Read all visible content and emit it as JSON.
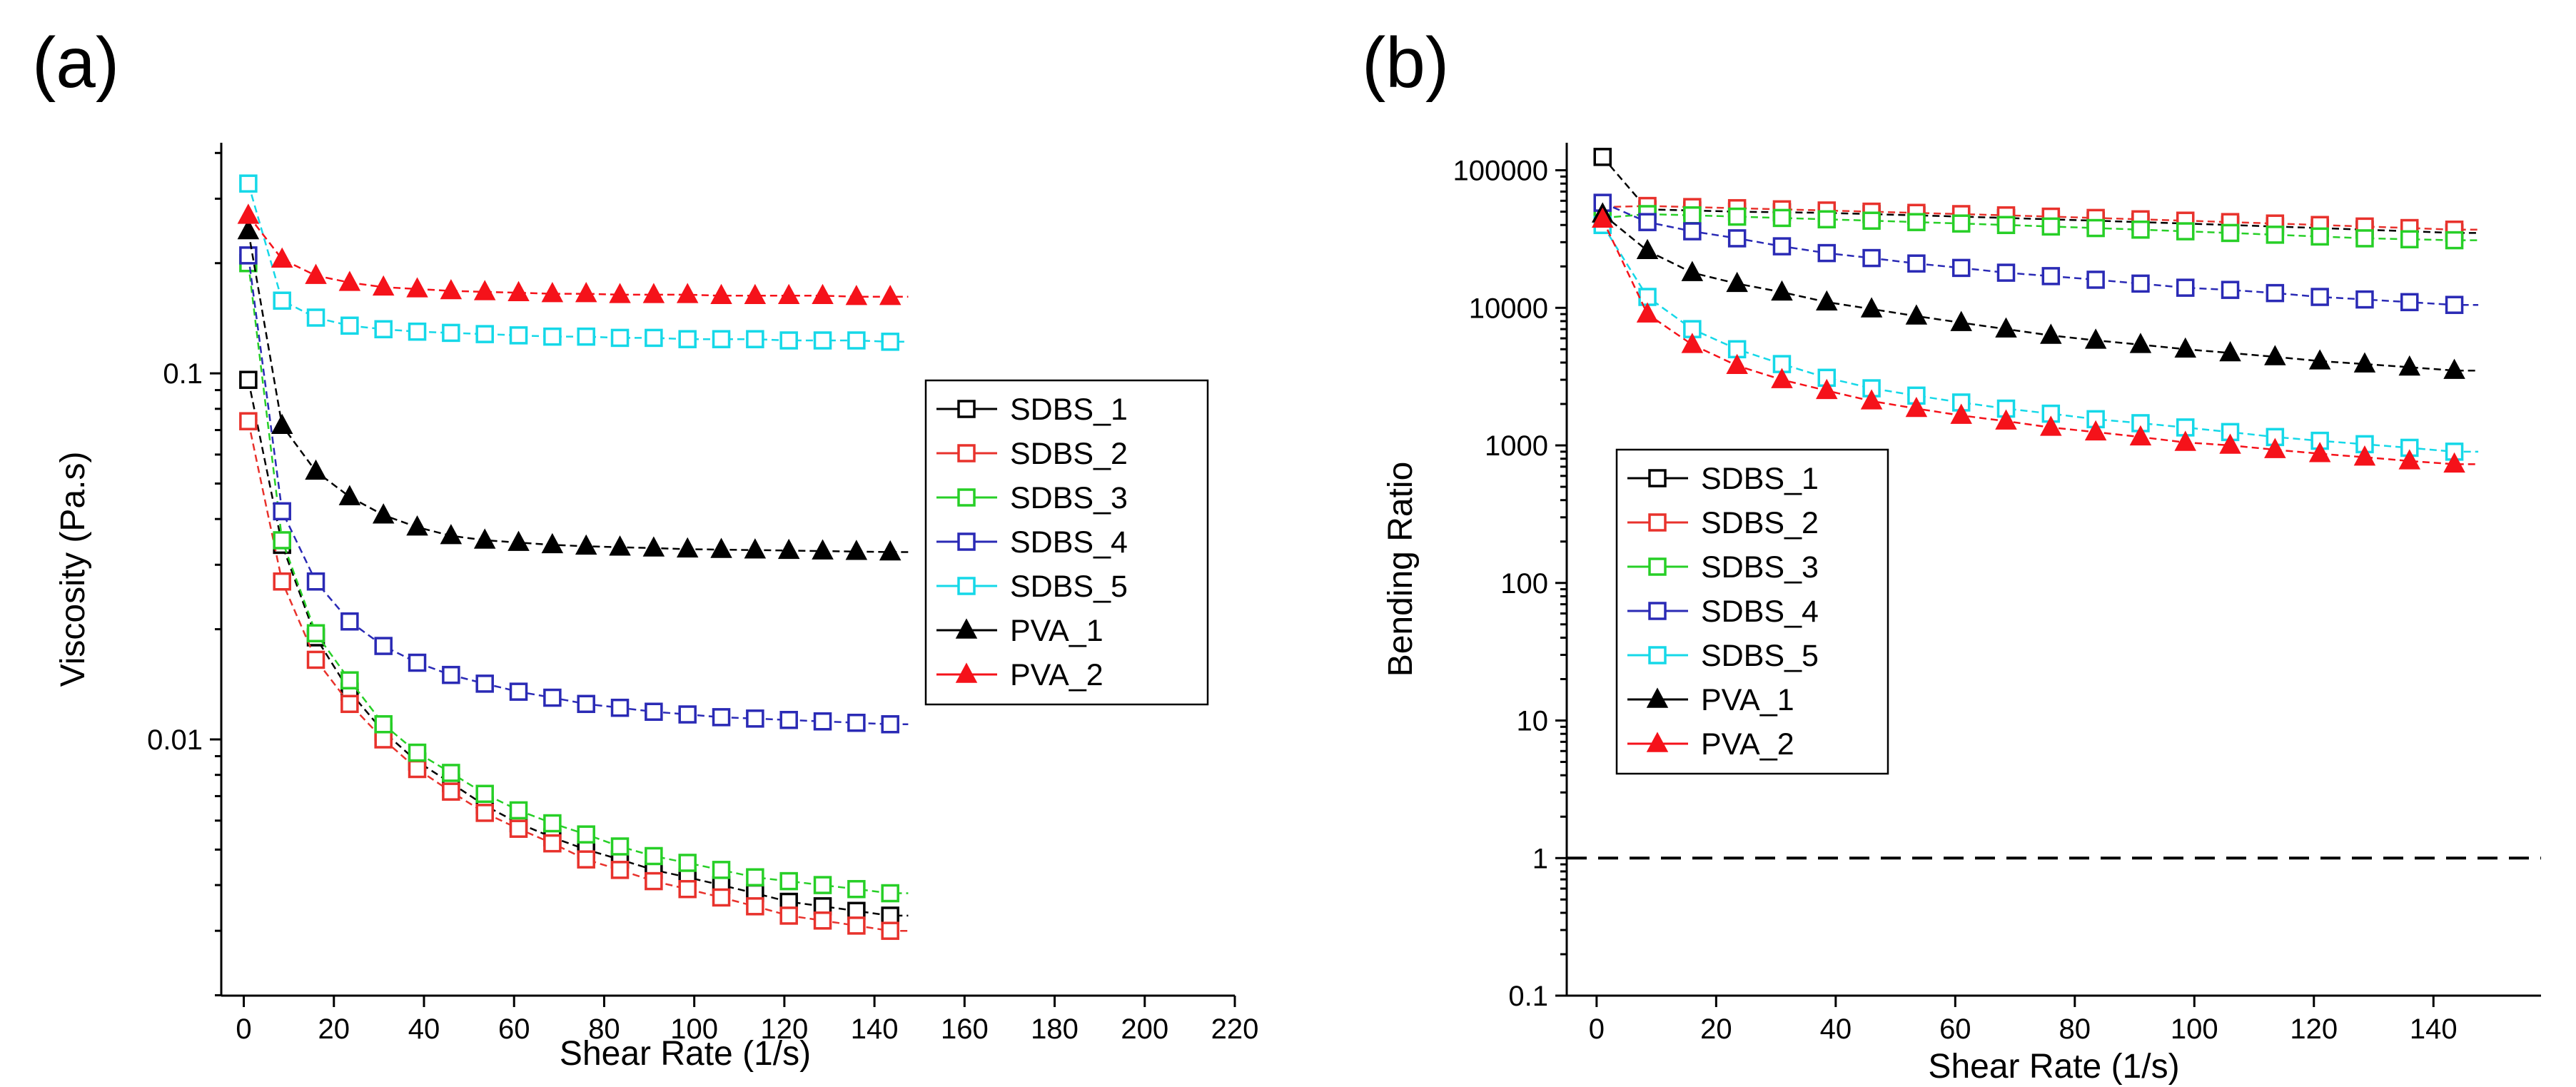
{
  "panels": [
    {
      "letter": "(a)",
      "chart_data": {
        "type": "scatter",
        "title": "",
        "xlabel": "Shear Rate (1/s)",
        "ylabel": "Viscosity (Pa.s)",
        "xlim": [
          -5,
          220
        ],
        "ylim_log10": [
          -2.7,
          -0.37
        ],
        "yscale": "log",
        "xticks": [
          0,
          20,
          40,
          60,
          80,
          100,
          120,
          140,
          160,
          180,
          200,
          220
        ],
        "yticks": [
          {
            "value": 0.1,
            "label": "0.1"
          },
          {
            "value": 0.01,
            "label": "0.01"
          }
        ],
        "x": [
          1,
          8.5,
          16,
          23.5,
          31,
          38.5,
          46,
          53.5,
          61,
          68.5,
          76,
          83.5,
          91,
          98.5,
          106,
          113.5,
          121,
          128.5,
          136,
          143.5
        ],
        "series": [
          {
            "name": "SDBS_1",
            "color": "#000000",
            "marker": "square",
            "values": [
              0.096,
              0.034,
              0.019,
              0.0135,
              0.0105,
              0.0087,
              0.0076,
              0.0066,
              0.0059,
              0.0054,
              0.005,
              0.0047,
              0.0044,
              0.0042,
              0.004,
              0.0038,
              0.0036,
              0.0035,
              0.0034,
              0.0033
            ]
          },
          {
            "name": "SDBS_2",
            "color": "#e8322c",
            "marker": "square",
            "values": [
              0.074,
              0.027,
              0.0165,
              0.0125,
              0.01,
              0.0083,
              0.0072,
              0.0063,
              0.0057,
              0.0052,
              0.0047,
              0.0044,
              0.0041,
              0.0039,
              0.0037,
              0.0035,
              0.0033,
              0.0032,
              0.0031,
              0.003
            ]
          },
          {
            "name": "SDBS_3",
            "color": "#27cf27",
            "marker": "square",
            "values": [
              0.2,
              0.035,
              0.0195,
              0.0145,
              0.011,
              0.0092,
              0.0081,
              0.0071,
              0.0064,
              0.0059,
              0.0055,
              0.0051,
              0.0048,
              0.0046,
              0.0044,
              0.0042,
              0.0041,
              0.004,
              0.0039,
              0.0038
            ]
          },
          {
            "name": "SDBS_4",
            "color": "#2a2ab5",
            "marker": "square",
            "values": [
              0.21,
              0.042,
              0.027,
              0.021,
              0.018,
              0.0162,
              0.015,
              0.0142,
              0.0135,
              0.013,
              0.0125,
              0.0122,
              0.0119,
              0.0117,
              0.0115,
              0.0114,
              0.0113,
              0.0112,
              0.0111,
              0.011
            ]
          },
          {
            "name": "SDBS_5",
            "color": "#15d8e8",
            "marker": "square",
            "values": [
              0.33,
              0.158,
              0.142,
              0.135,
              0.132,
              0.13,
              0.129,
              0.128,
              0.127,
              0.126,
              0.126,
              0.125,
              0.125,
              0.124,
              0.124,
              0.124,
              0.123,
              0.123,
              0.123,
              0.122
            ]
          },
          {
            "name": "PVA_1",
            "color": "#000000",
            "marker": "triangle",
            "values": [
              0.245,
              0.072,
              0.054,
              0.046,
              0.041,
              0.038,
              0.036,
              0.035,
              0.0345,
              0.034,
              0.0337,
              0.0335,
              0.0333,
              0.0331,
              0.033,
              0.0329,
              0.0328,
              0.0327,
              0.0326,
              0.0325
            ]
          },
          {
            "name": "PVA_2",
            "color": "#f5121a",
            "marker": "triangle",
            "values": [
              0.27,
              0.205,
              0.185,
              0.177,
              0.172,
              0.17,
              0.168,
              0.167,
              0.166,
              0.165,
              0.165,
              0.164,
              0.164,
              0.164,
              0.163,
              0.163,
              0.163,
              0.163,
              0.162,
              0.162
            ]
          }
        ],
        "legend": [
          "SDBS_1",
          "SDBS_2",
          "SDBS_3",
          "SDBS_4",
          "SDBS_5",
          "PVA_1",
          "PVA_2"
        ]
      }
    },
    {
      "letter": "(b)",
      "chart_data": {
        "type": "scatter",
        "title": "",
        "xlabel": "Shear Rate (1/s)",
        "ylabel": "Bending Ratio",
        "xlim": [
          -5,
          158
        ],
        "ylim_log10": [
          -1,
          5.2
        ],
        "yscale": "log",
        "xticks": [
          0,
          20,
          40,
          60,
          80,
          100,
          120,
          140
        ],
        "yticks": [
          {
            "value": 100000,
            "label": "100000"
          },
          {
            "value": 10000,
            "label": "10000"
          },
          {
            "value": 1000,
            "label": "1000"
          },
          {
            "value": 100,
            "label": "100"
          },
          {
            "value": 10,
            "label": "10"
          },
          {
            "value": 1,
            "label": "1"
          },
          {
            "value": 0.1,
            "label": "0.1"
          }
        ],
        "reference_line": {
          "y": 1,
          "style": "dashed"
        },
        "x": [
          1,
          8.5,
          16,
          23.5,
          31,
          38.5,
          46,
          53.5,
          61,
          68.5,
          76,
          83.5,
          91,
          98.5,
          106,
          113.5,
          121,
          128.5,
          136,
          143.5
        ],
        "series": [
          {
            "name": "SDBS_1",
            "color": "#000000",
            "marker": "square",
            "values": [
              125000,
              52000,
              51000,
              50000,
              49500,
              49000,
              48000,
              47000,
              46000,
              45000,
              44000,
              43000,
              42000,
              41000,
              40000,
              39000,
              38000,
              37000,
              36000,
              35000
            ]
          },
          {
            "name": "SDBS_2",
            "color": "#e8322c",
            "marker": "square",
            "values": [
              54000,
              55000,
              54000,
              53000,
              52000,
              51000,
              50000,
              49000,
              48000,
              47000,
              46000,
              45000,
              44000,
              43000,
              42000,
              41000,
              40000,
              39000,
              38000,
              37000
            ]
          },
          {
            "name": "SDBS_3",
            "color": "#27cf27",
            "marker": "square",
            "values": [
              45000,
              48000,
              47000,
              46000,
              45000,
              44000,
              43000,
              42000,
              41000,
              40000,
              39000,
              38000,
              37000,
              36000,
              35000,
              34000,
              33000,
              32000,
              31500,
              31000
            ]
          },
          {
            "name": "SDBS_4",
            "color": "#2a2ab5",
            "marker": "square",
            "values": [
              58000,
              42000,
              36000,
              32000,
              28000,
              25000,
              23000,
              21000,
              19500,
              18000,
              17000,
              16000,
              15000,
              14000,
              13500,
              12800,
              12000,
              11500,
              11000,
              10500
            ]
          },
          {
            "name": "SDBS_5",
            "color": "#15d8e8",
            "marker": "square",
            "values": [
              40000,
              12000,
              7000,
              5000,
              3900,
              3100,
              2600,
              2300,
              2050,
              1850,
              1700,
              1550,
              1450,
              1350,
              1250,
              1150,
              1080,
              1020,
              960,
              900
            ]
          },
          {
            "name": "PVA_1",
            "color": "#000000",
            "marker": "triangle",
            "values": [
              48000,
              26000,
              18000,
              15000,
              13000,
              11000,
              9800,
              8700,
              7800,
              7000,
              6300,
              5800,
              5400,
              5000,
              4700,
              4400,
              4100,
              3900,
              3700,
              3500
            ]
          },
          {
            "name": "PVA_2",
            "color": "#f5121a",
            "marker": "triangle",
            "values": [
              44000,
              9000,
              5400,
              3800,
              3000,
              2500,
              2100,
              1850,
              1650,
              1500,
              1350,
              1250,
              1150,
              1050,
              1000,
              930,
              870,
              820,
              770,
              730
            ]
          }
        ],
        "legend": [
          "SDBS_1",
          "SDBS_2",
          "SDBS_3",
          "SDBS_4",
          "SDBS_5",
          "PVA_1",
          "PVA_2"
        ]
      }
    }
  ]
}
